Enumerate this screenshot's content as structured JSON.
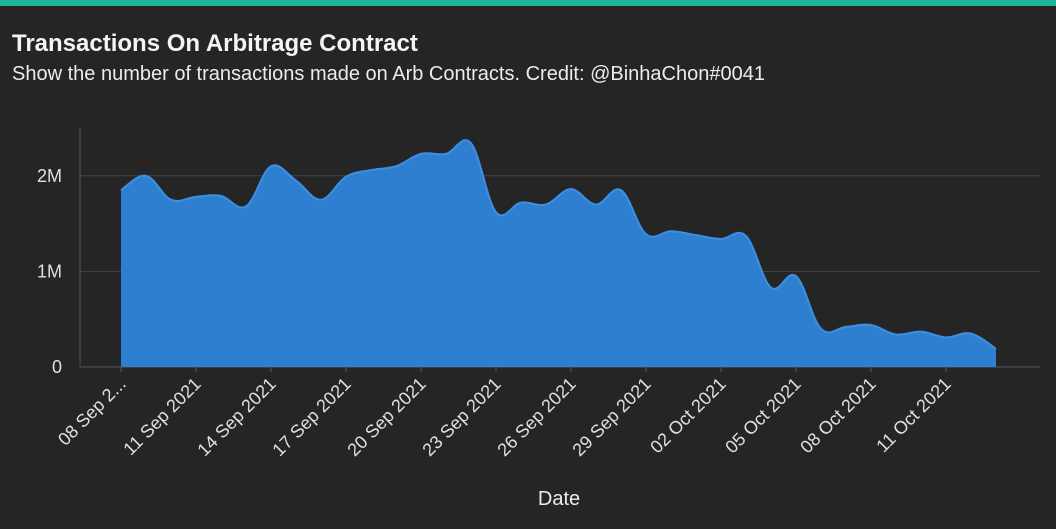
{
  "header": {
    "title": "Transactions On Arbitrage Contract",
    "subtitle": "Show the number of transactions made on Arb Contracts. Credit: @BinhaChon#0041"
  },
  "colors": {
    "accent": "#1fb6a0",
    "area_fill": "#2f7fd0",
    "area_stroke": "#3c8fe3",
    "grid": "#454545",
    "axis": "#555555"
  },
  "chart_data": {
    "type": "area",
    "title": "Transactions On Arbitrage Contract",
    "xlabel": "Date",
    "ylabel": "",
    "ylim": [
      0,
      2500000
    ],
    "y_ticks": [
      0,
      1000000,
      2000000
    ],
    "y_tick_labels": [
      "0",
      "1M",
      "2M"
    ],
    "x_tick_labels": [
      "08 Sep 2...",
      "11 Sep 2021",
      "14 Sep 2021",
      "17 Sep 2021",
      "20 Sep 2021",
      "23 Sep 2021",
      "26 Sep 2021",
      "29 Sep 2021",
      "02 Oct 2021",
      "05 Oct 2021",
      "08 Oct 2021",
      "11 Oct 2021"
    ],
    "x_tick_index": [
      0,
      3,
      6,
      9,
      12,
      15,
      18,
      21,
      24,
      27,
      30,
      33
    ],
    "x": [
      "08 Sep 2021",
      "09 Sep 2021",
      "10 Sep 2021",
      "11 Sep 2021",
      "12 Sep 2021",
      "13 Sep 2021",
      "14 Sep 2021",
      "15 Sep 2021",
      "16 Sep 2021",
      "17 Sep 2021",
      "18 Sep 2021",
      "19 Sep 2021",
      "20 Sep 2021",
      "21 Sep 2021",
      "22 Sep 2021",
      "23 Sep 2021",
      "24 Sep 2021",
      "25 Sep 2021",
      "26 Sep 2021",
      "27 Sep 2021",
      "28 Sep 2021",
      "29 Sep 2021",
      "30 Sep 2021",
      "01 Oct 2021",
      "02 Oct 2021",
      "03 Oct 2021",
      "04 Oct 2021",
      "05 Oct 2021",
      "06 Oct 2021",
      "07 Oct 2021",
      "08 Oct 2021",
      "09 Oct 2021",
      "10 Oct 2021",
      "11 Oct 2021",
      "12 Oct 2021",
      "13 Oct 2021"
    ],
    "series": [
      {
        "name": "Transactions",
        "values": [
          1850000,
          2000000,
          1750000,
          1780000,
          1790000,
          1680000,
          2100000,
          1950000,
          1750000,
          1990000,
          2060000,
          2100000,
          2230000,
          2230000,
          2340000,
          1620000,
          1720000,
          1700000,
          1860000,
          1700000,
          1850000,
          1390000,
          1420000,
          1380000,
          1340000,
          1370000,
          830000,
          950000,
          400000,
          420000,
          440000,
          340000,
          370000,
          310000,
          350000,
          190000
        ]
      }
    ]
  }
}
